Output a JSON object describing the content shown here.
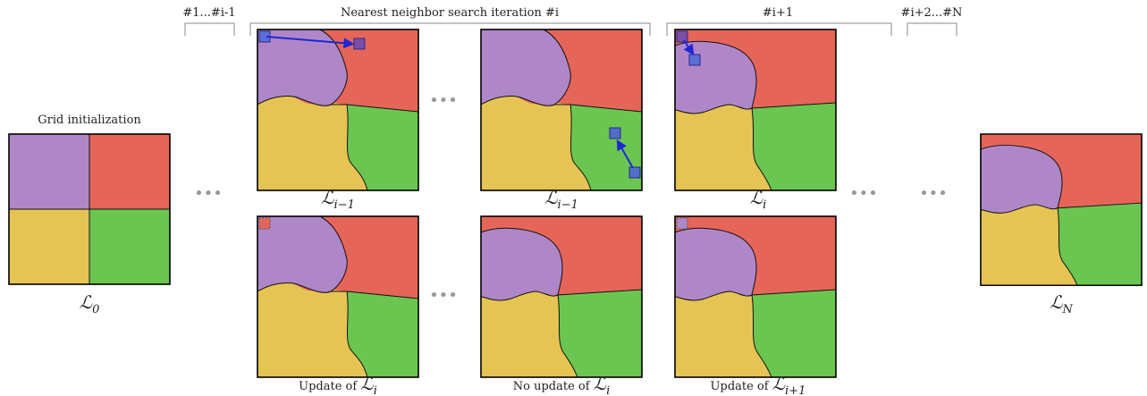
{
  "headers": {
    "prev_iterations": "#1...#i-1",
    "current_iteration": "Nearest neighbor search iteration #i",
    "next_iteration": "#i+1",
    "later_iterations": "#i+2...#N"
  },
  "grid_init_label": "Grid initialization",
  "ellipsis": "•••",
  "grids": [
    {
      "id": "L0",
      "symbol": "ℒ",
      "subscript": "0",
      "prefix": ""
    },
    {
      "id": "top1",
      "symbol": "ℒ",
      "subscript": "i−1",
      "prefix": ""
    },
    {
      "id": "top2",
      "symbol": "ℒ",
      "subscript": "i−1",
      "prefix": ""
    },
    {
      "id": "top3",
      "symbol": "ℒ",
      "subscript": "i",
      "prefix": ""
    },
    {
      "id": "LN",
      "symbol": "ℒ",
      "subscript": "N",
      "prefix": ""
    },
    {
      "id": "bot1",
      "symbol": "ℒ",
      "subscript": "i",
      "prefix": "Update of "
    },
    {
      "id": "bot2",
      "symbol": "ℒ",
      "subscript": "i",
      "prefix": "No update of "
    },
    {
      "id": "bot3",
      "symbol": "ℒ",
      "subscript": "i+1",
      "prefix": "Update of "
    }
  ],
  "colors": {
    "purple": "#AF87C8",
    "red": "#E66559",
    "yellow": "#E5C454",
    "green": "#6AC650",
    "marker_blue": "#5A6FD8",
    "marker_dark": "#7A4FA8",
    "arrow": "#1F26D6",
    "bracket": "#888888",
    "ellipsis": "#999999"
  }
}
